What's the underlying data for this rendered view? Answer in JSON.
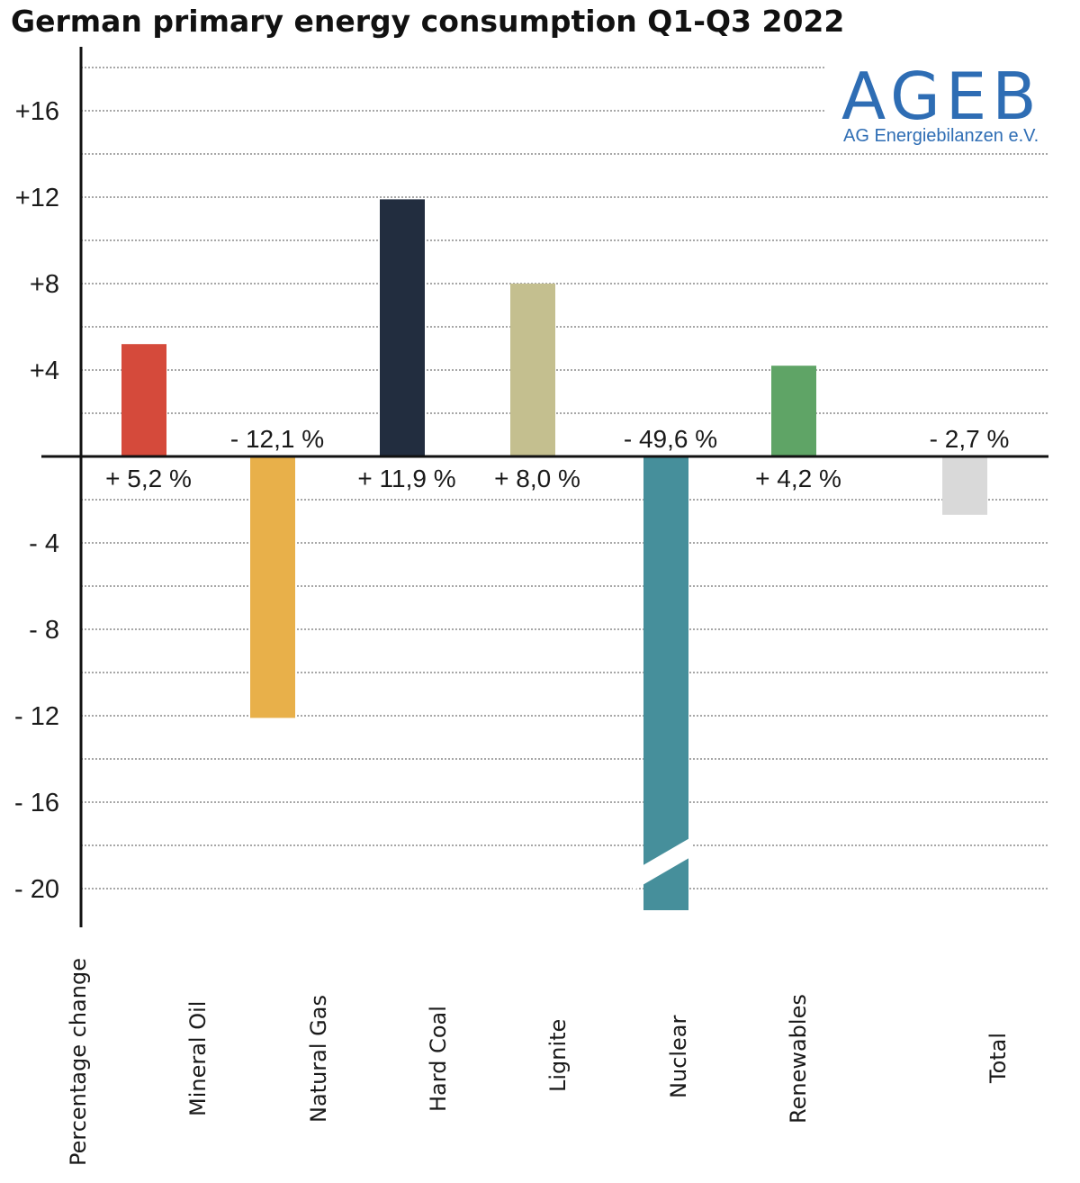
{
  "title": "German primary energy consumption Q1-Q3 2022",
  "logo": {
    "name": "AGEB",
    "subtitle": "AG Energiebilanzen e.V."
  },
  "chart_data": {
    "type": "bar",
    "title": "German primary energy consumption Q1-Q3 2022",
    "xlabel": "",
    "ylabel": "Percentage change",
    "ylim": [
      -20,
      16
    ],
    "y_ticks": [
      16,
      12,
      8,
      4,
      -4,
      -8,
      -12,
      -16,
      -20
    ],
    "y_tick_labels": [
      "+16",
      "+12",
      "+8",
      "+4",
      "- 4",
      "- 8",
      "- 12",
      "- 16",
      "- 20"
    ],
    "grid": true,
    "categories": [
      "Mineral Oil",
      "Natural Gas",
      "Hard Coal",
      "Lignite",
      "Nuclear",
      "Renewables",
      "Total"
    ],
    "values": [
      5.2,
      -12.1,
      11.9,
      8.0,
      -49.6,
      4.2,
      -2.7
    ],
    "data_labels": [
      "+ 5,2 %",
      "- 12,1 %",
      "+ 11,9 %",
      "+ 8,0 %",
      "- 49,6 %",
      "+ 4,2 %",
      "- 2,7 %"
    ],
    "colors": [
      "#d54a3b",
      "#e8b04a",
      "#222d3f",
      "#c4bf8f",
      "#468f9b",
      "#5fa466",
      "#d9d9d9"
    ],
    "axis_break": "Nuclear"
  }
}
